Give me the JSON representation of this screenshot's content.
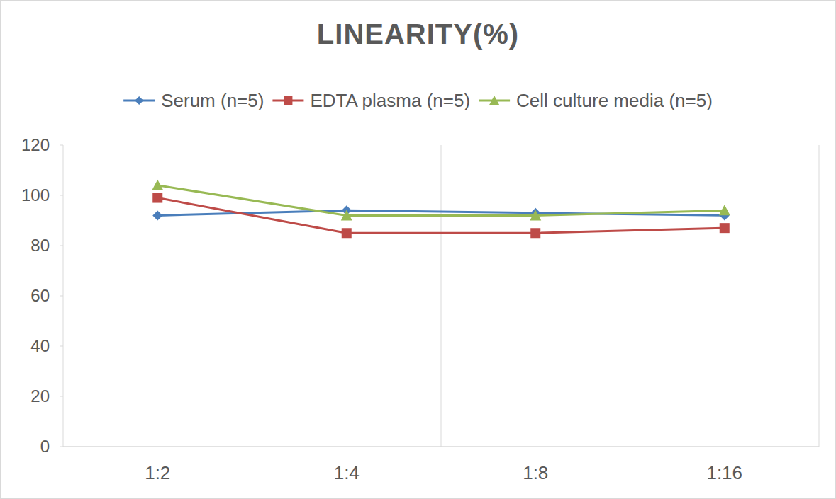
{
  "chart_data": {
    "type": "line",
    "title": "LINEARITY(%)",
    "categories": [
      "1:2",
      "1:4",
      "1:8",
      "1:16"
    ],
    "series": [
      {
        "name": "Serum (n=5)",
        "color": "#4a7ebb",
        "marker": "diamond",
        "values": [
          92,
          94,
          93,
          92
        ]
      },
      {
        "name": "EDTA plasma (n=5)",
        "color": "#be4b48",
        "marker": "square",
        "values": [
          99,
          85,
          85,
          87
        ]
      },
      {
        "name": "Cell culture media (n=5)",
        "color": "#98b954",
        "marker": "triangle",
        "values": [
          104,
          92,
          92,
          94
        ]
      }
    ],
    "ylim": [
      0,
      120
    ],
    "yticks": [
      0,
      20,
      40,
      60,
      80,
      100,
      120
    ],
    "grid": true,
    "legend": "top"
  }
}
